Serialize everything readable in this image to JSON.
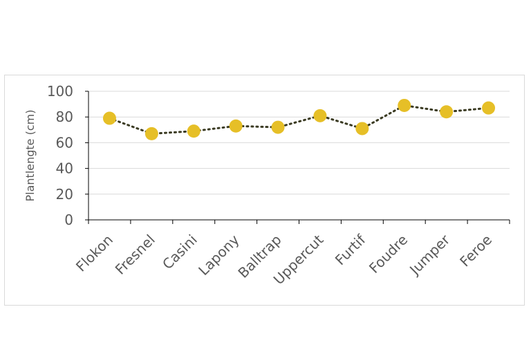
{
  "chart_data": {
    "type": "line",
    "title": "",
    "xlabel": "",
    "ylabel": "Plantlengte (cm)",
    "categories": [
      "Flokon",
      "Fresnel",
      "Casini",
      "Lapony",
      "Balltrap",
      "Uppercut",
      "Furtif",
      "Foudre",
      "Jumper",
      "Feroe"
    ],
    "series": [
      {
        "values": [
          79,
          67,
          69,
          73,
          72,
          81,
          71,
          89,
          84,
          87
        ]
      }
    ],
    "ylim": [
      0,
      100
    ],
    "yticks": [
      0,
      20,
      40,
      60,
      80,
      100
    ],
    "grid": true,
    "legend": "none",
    "colors": {
      "marker": "#e6bf27",
      "line": "#3a3a22",
      "grid": "#d9d9d9",
      "axis": "#000000",
      "text": "#595959"
    }
  }
}
